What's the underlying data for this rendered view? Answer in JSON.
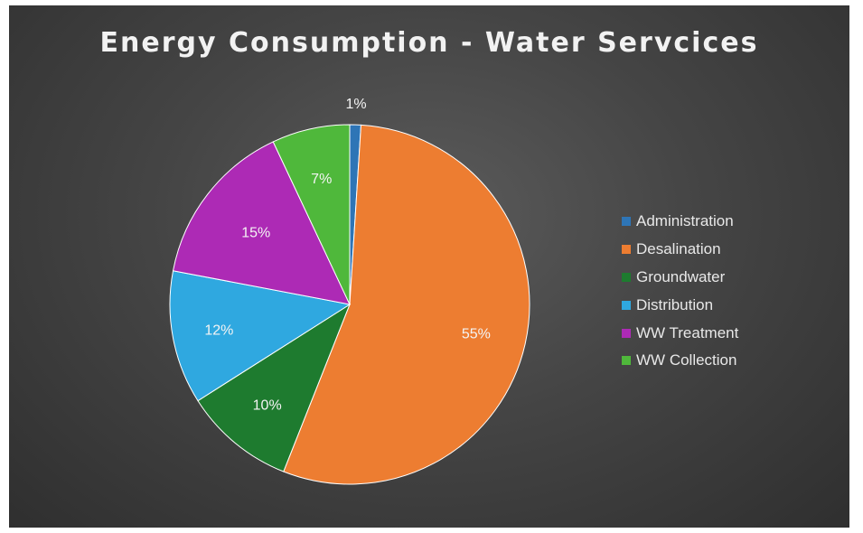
{
  "chart_data": {
    "type": "pie",
    "title": "Energy Consumption - Water Servcices",
    "categories": [
      "Administration",
      "Desalination",
      "Groundwater",
      "Distribution",
      "WW Treatment",
      "WW Collection"
    ],
    "values": [
      1,
      55,
      10,
      12,
      15,
      7
    ],
    "labels": [
      "1%",
      "55%",
      "10%",
      "12%",
      "15%",
      "7%"
    ],
    "colors": [
      "#2e75b6",
      "#ed7d31",
      "#1e7b2f",
      "#2fa8e0",
      "#ad2ab5",
      "#4fb83b"
    ],
    "legend": "right"
  }
}
